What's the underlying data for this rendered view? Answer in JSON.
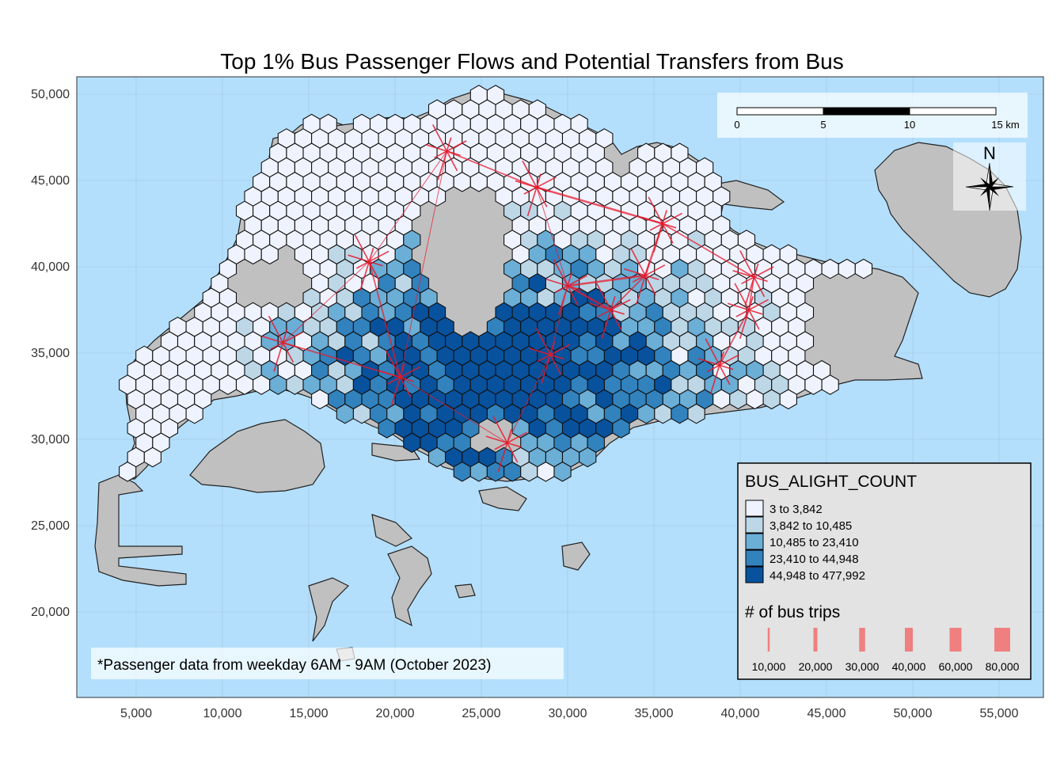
{
  "title": "Top 1% Bus Passenger Flows and Potential Transfers from Bus",
  "axes": {
    "x_ticks": [
      "5,000",
      "10,000",
      "15,000",
      "20,000",
      "25,000",
      "30,000",
      "35,000",
      "40,000",
      "45,000",
      "50,000",
      "55,000"
    ],
    "y_ticks": [
      "50,000",
      "45,000",
      "40,000",
      "35,000",
      "30,000",
      "25,000",
      "20,000"
    ],
    "x_values": [
      5000,
      10000,
      15000,
      20000,
      25000,
      30000,
      35000,
      40000,
      45000,
      50000,
      55000
    ],
    "y_values": [
      50000,
      45000,
      40000,
      35000,
      30000,
      25000,
      20000
    ],
    "x_range": [
      1500,
      59500
    ],
    "y_range": [
      14200,
      51000
    ]
  },
  "colors": {
    "sea": "#b3dffc",
    "land": "#c0c0c0",
    "flow": "#e8192c",
    "grid": "#9ab4c8",
    "legend_bg": "#e3e3e3"
  },
  "scale_bar": {
    "labels": [
      "0",
      "5",
      "10",
      "15 km"
    ]
  },
  "north_arrow": {
    "label": "N"
  },
  "legend": {
    "title": "BUS_ALIGHT_COUNT",
    "items": [
      {
        "label": "3 to 3,842",
        "color": "#eff3ff"
      },
      {
        "label": "3,842 to 10,485",
        "color": "#bdd7e7"
      },
      {
        "label": "10,485 to 23,410",
        "color": "#6baed6"
      },
      {
        "label": "23,410 to 44,948",
        "color": "#3182bd"
      },
      {
        "label": "44,948 to 477,992",
        "color": "#08519c"
      }
    ],
    "width_title": "# of bus trips",
    "width_items": [
      {
        "label": "10,000",
        "value": 10000
      },
      {
        "label": "20,000",
        "value": 20000
      },
      {
        "label": "30,000",
        "value": 30000
      },
      {
        "label": "40,000",
        "value": 40000
      },
      {
        "label": "60,000",
        "value": 60000
      },
      {
        "label": "80,000",
        "value": 80000
      }
    ]
  },
  "note": "*Passenger data from weekday 6AM - 9AM (October 2023)",
  "chart_data": {
    "type": "map",
    "hubs": [
      {
        "x": 23000,
        "y": 46700
      },
      {
        "x": 28200,
        "y": 44600
      },
      {
        "x": 35500,
        "y": 42500
      },
      {
        "x": 18500,
        "y": 40300
      },
      {
        "x": 13500,
        "y": 35600
      },
      {
        "x": 20300,
        "y": 33600
      },
      {
        "x": 30000,
        "y": 38900
      },
      {
        "x": 32500,
        "y": 37500
      },
      {
        "x": 34500,
        "y": 39500
      },
      {
        "x": 38800,
        "y": 34300
      },
      {
        "x": 40500,
        "y": 37500
      },
      {
        "x": 40800,
        "y": 39400
      },
      {
        "x": 29000,
        "y": 34900
      },
      {
        "x": 26500,
        "y": 29800
      }
    ],
    "flows": [
      {
        "from": 0,
        "to": 1,
        "trips": 20000
      },
      {
        "from": 0,
        "to": 5,
        "trips": 10000
      },
      {
        "from": 0,
        "to": 3,
        "trips": 10000
      },
      {
        "from": 1,
        "to": 2,
        "trips": 30000
      },
      {
        "from": 1,
        "to": 6,
        "trips": 10000
      },
      {
        "from": 2,
        "to": 8,
        "trips": 30000
      },
      {
        "from": 2,
        "to": 11,
        "trips": 20000
      },
      {
        "from": 3,
        "to": 4,
        "trips": 10000
      },
      {
        "from": 3,
        "to": 5,
        "trips": 20000
      },
      {
        "from": 4,
        "to": 5,
        "trips": 20000
      },
      {
        "from": 6,
        "to": 7,
        "trips": 30000
      },
      {
        "from": 6,
        "to": 8,
        "trips": 30000
      },
      {
        "from": 7,
        "to": 8,
        "trips": 20000
      },
      {
        "from": 9,
        "to": 10,
        "trips": 20000
      },
      {
        "from": 10,
        "to": 11,
        "trips": 20000
      },
      {
        "from": 12,
        "to": 6,
        "trips": 10000
      },
      {
        "from": 12,
        "to": 13,
        "trips": 10000
      },
      {
        "from": 5,
        "to": 13,
        "trips": 10000
      }
    ]
  }
}
